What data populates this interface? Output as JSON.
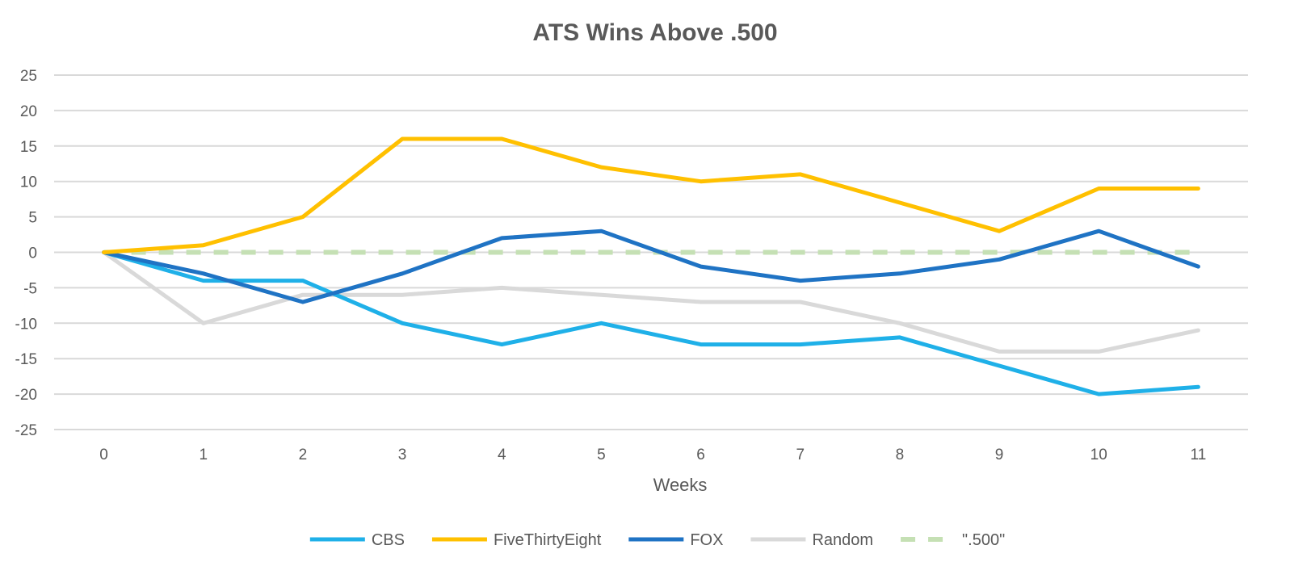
{
  "chart_data": {
    "type": "line",
    "title": "ATS Wins Above .500",
    "xlabel": "Weeks",
    "ylabel": "",
    "x": [
      0,
      1,
      2,
      3,
      4,
      5,
      6,
      7,
      8,
      9,
      10,
      11
    ],
    "xticks": [
      "0",
      "1",
      "2",
      "3",
      "4",
      "5",
      "6",
      "7",
      "8",
      "9",
      "10",
      "11"
    ],
    "ylim": [
      -25,
      25
    ],
    "yticks": [
      25,
      20,
      15,
      10,
      5,
      0,
      -5,
      -10,
      -15,
      -20,
      -25
    ],
    "ytick_labels": [
      "25",
      "20",
      "15",
      "10",
      "5",
      "0",
      "-5",
      "-10",
      "-15",
      "-20",
      "-25"
    ],
    "grid": true,
    "legend_position": "bottom",
    "series": [
      {
        "name": "CBS",
        "color": "#1fb0e8",
        "style": "solid",
        "values": [
          0,
          -4,
          -4,
          -10,
          -13,
          -10,
          -13,
          -13,
          -12,
          -16,
          -20,
          -19
        ]
      },
      {
        "name": "FiveThirtyEight",
        "color": "#ffc000",
        "style": "solid",
        "values": [
          0,
          1,
          5,
          16,
          16,
          12,
          10,
          11,
          7,
          3,
          9,
          9
        ]
      },
      {
        "name": "FOX",
        "color": "#1f73c4",
        "style": "solid",
        "values": [
          0,
          -3,
          -7,
          -3,
          2,
          3,
          -2,
          -4,
          -3,
          -1,
          3,
          -2
        ]
      },
      {
        "name": "Random",
        "color": "#d9d9d9",
        "style": "solid",
        "values": [
          0,
          -10,
          -6,
          -6,
          -5,
          -6,
          -7,
          -7,
          -10,
          -14,
          -14,
          -11
        ]
      },
      {
        "name": "\".500\"",
        "color": "#c5e0b4",
        "style": "dashed",
        "values": [
          0,
          0,
          0,
          0,
          0,
          0,
          0,
          0,
          0,
          0,
          0,
          0
        ]
      }
    ]
  }
}
